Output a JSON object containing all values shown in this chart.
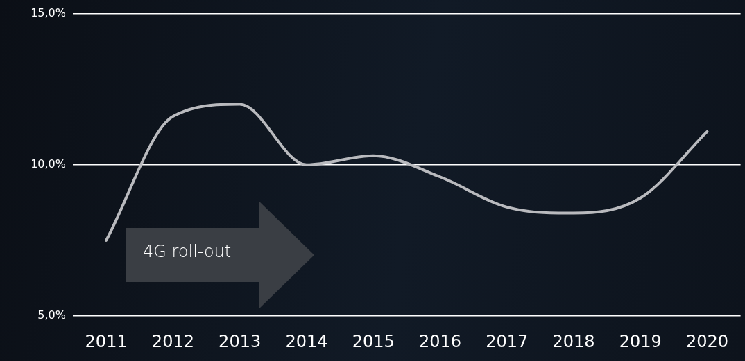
{
  "chart_data": {
    "type": "line",
    "categories": [
      "2011",
      "2012",
      "2013",
      "2014",
      "2015",
      "2016",
      "2017",
      "2018",
      "2019",
      "2020"
    ],
    "series": [
      {
        "color": "#b9babe",
        "values": [
          7.5,
          11.6,
          12.0,
          10.0,
          10.3,
          9.6,
          8.6,
          8.4,
          8.9,
          11.1
        ]
      }
    ],
    "ylim": [
      5,
      15
    ],
    "yticks": [
      {
        "value": 5,
        "label": "5,0%"
      },
      {
        "value": 10,
        "label": "10,0%"
      },
      {
        "value": 15,
        "label": "15,0%"
      }
    ],
    "grid": "y",
    "legend": false,
    "marker": "none",
    "line_style": "solid",
    "annotations": [
      "4G roll-out"
    ]
  }
}
